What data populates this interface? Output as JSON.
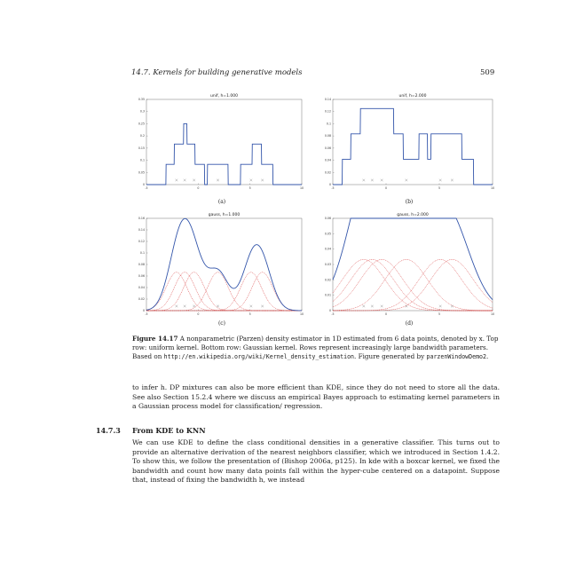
{
  "header": {
    "section": "14.7. Kernels for building generative models",
    "page_number": "509"
  },
  "figure": {
    "panels": [
      {
        "title": "unif, h=1.000",
        "label": "(a)",
        "yticks": [
          "0",
          "0.05",
          "0.1",
          "0.15",
          "0.2",
          "0.25",
          "0.3",
          "0.35"
        ],
        "xticks": [
          "-5",
          "0",
          "5",
          "10"
        ]
      },
      {
        "title": "unif, h=2.000",
        "label": "(b)",
        "yticks": [
          "0",
          "0.02",
          "0.04",
          "0.06",
          "0.08",
          "0.1",
          "0.12",
          "0.14"
        ],
        "xticks": [
          "-5",
          "0",
          "5",
          "10"
        ]
      },
      {
        "title": "gauss, h=1.000",
        "label": "(c)",
        "yticks": [
          "0",
          "0.02",
          "0.04",
          "0.06",
          "0.08",
          "0.1",
          "0.12",
          "0.14",
          "0.16"
        ],
        "xticks": [
          "-5",
          "0",
          "5",
          "10"
        ]
      },
      {
        "title": "gauss, h=2.000",
        "label": "(d)",
        "yticks": [
          "0",
          "0.01",
          "0.02",
          "0.03",
          "0.04",
          "0.05",
          "0.06"
        ],
        "xticks": [
          "-5",
          "0",
          "5",
          "10"
        ]
      }
    ],
    "caption_label": "Figure 14.17",
    "caption_text": " A nonparametric (Parzen) density estimator in 1D estimated from 6 data points, denoted by x. Top row: uniform kernel. Bottom row: Gaussian kernel. Rows represent increasingly large bandwidth parameters. Based on ",
    "caption_url": "http://en.wikipedia.org/wiki/Kernel_density_estimation",
    "caption_mid": ". Figure generated by ",
    "caption_code": "parzenWindowDemo2",
    "caption_end": "."
  },
  "chart_data": [
    {
      "type": "line",
      "title": "unif, h=1.000",
      "kernel": "uniform",
      "h": 1.0,
      "data_points": [
        -2.1,
        -1.3,
        -0.4,
        1.9,
        5.1,
        6.2
      ],
      "xlim": [
        -5,
        10
      ],
      "ylim": [
        0,
        0.35
      ]
    },
    {
      "type": "line",
      "title": "unif, h=2.000",
      "kernel": "uniform",
      "h": 2.0,
      "data_points": [
        -2.1,
        -1.3,
        -0.4,
        1.9,
        5.1,
        6.2
      ],
      "xlim": [
        -5,
        10
      ],
      "ylim": [
        0,
        0.14
      ]
    },
    {
      "type": "line",
      "title": "gauss, h=1.000",
      "kernel": "gaussian",
      "h": 1.0,
      "data_points": [
        -2.1,
        -1.3,
        -0.4,
        1.9,
        5.1,
        6.2
      ],
      "xlim": [
        -5,
        10
      ],
      "ylim": [
        0,
        0.16
      ]
    },
    {
      "type": "line",
      "title": "gauss, h=2.000",
      "kernel": "gaussian",
      "h": 2.0,
      "data_points": [
        -2.1,
        -1.3,
        -0.4,
        1.9,
        5.1,
        6.2
      ],
      "xlim": [
        -5,
        10
      ],
      "ylim": [
        0,
        0.06
      ]
    }
  ],
  "colors": {
    "density": "#3355aa",
    "kernel": "#d42020",
    "points": "#888888"
  },
  "body": {
    "para1": "to infer h. DP mixtures can also be more efficient than KDE, since they do not need to store all the data. See also Section 15.2.4 where we discuss an empirical Bayes approach to estimating kernel parameters in a Gaussian process model for classification/ regression.",
    "section_number": "14.7.3",
    "section_title": "From KDE to KNN",
    "para2": "We can use KDE to define the class conditional densities in a generative classifier. This turns out to provide an alternative derivation of the nearest neighbors classifier, which we introduced in Section 1.4.2. To show this, we follow the presentation of (Bishop 2006a, p125). In kde with a boxcar kernel, we fixed the bandwidth and count how many data points fall within the hyper-cube centered on a datapoint. Suppose that, instead of fixing the bandwidth h, we instead"
  }
}
